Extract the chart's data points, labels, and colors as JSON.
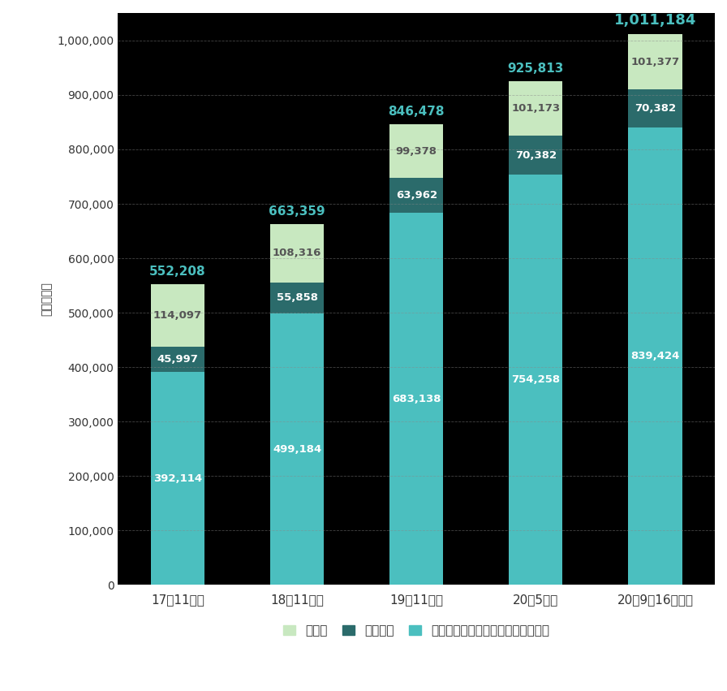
{
  "categories": [
    "17年11月末",
    "18年11月末",
    "19年11月末",
    "20年5月末",
    "20年9月16日時点"
  ],
  "private_fund": [
    392114,
    499184,
    683138,
    754258,
    839424
  ],
  "j_reit": [
    45997,
    55858,
    63962,
    70382,
    70382
  ],
  "cre": [
    114097,
    108316,
    99378,
    101173,
    101377
  ],
  "totals": [
    552208,
    663359,
    846478,
    925813,
    1011184
  ],
  "private_fund_color": "#4BBFBF",
  "j_reit_color": "#2B6B6B",
  "cre_color": "#C8E8C0",
  "fig_background": "#FFFFFF",
  "plot_background": "#000000",
  "axis_label_color": "#333333",
  "tick_color": "#333333",
  "grid_color": "#888888",
  "ylim": [
    0,
    1050000
  ],
  "yticks": [
    0,
    100000,
    200000,
    300000,
    400000,
    500000,
    600000,
    700000,
    800000,
    900000,
    1000000
  ],
  "ylabel": "（百万円）",
  "legend_labels": [
    "ＣＲＥ",
    "Ｊリート",
    "私募ファンドアセットマネジメント"
  ],
  "bar_width": 0.45,
  "label_color_private": "#FFFFFF",
  "label_color_reit": "#FFFFFF",
  "label_color_cre": "#555555",
  "total_label_color": "#4BBFBF",
  "total_label_color_last": "#4BBFBF"
}
